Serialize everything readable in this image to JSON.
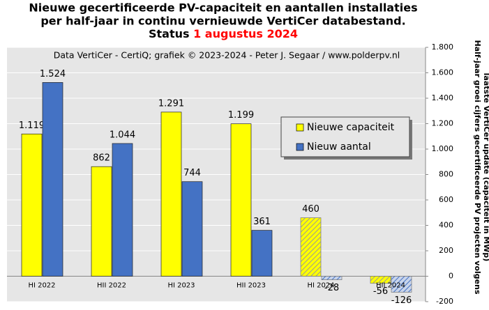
{
  "chart_data": {
    "type": "bar",
    "title": [
      "Nieuwe gecertificeerde PV-capaciteit  en aantallen installaties",
      "per half-jaar in continu vernieuwde VertiCer databestand."
    ],
    "status_label": "Status",
    "status_date": "1 augustus 2024",
    "annotation": "Data VertiCer - CertiQ; grafiek © 2023-2024 - Peter J. Segaar / www.polderpv.nl",
    "y_label": [
      "Half-jaar groei cijfers gecertificeerde PV projecten volgens",
      "laatste VertiCer update (capaciteit in MWp)"
    ],
    "categories": [
      "HI 2022",
      "HII 2022",
      "HI 2023",
      "HII 2023",
      "HI 2024",
      "HII 2024"
    ],
    "hatched": [
      false,
      false,
      false,
      false,
      true,
      true
    ],
    "series": [
      {
        "name": "Nieuwe capaciteit",
        "color": "#ffff00",
        "values": [
          1119,
          862,
          1291,
          1199,
          460,
          -56
        ],
        "value_labels": [
          "1.119",
          "862",
          "1.291",
          "1.199",
          "460",
          "-56"
        ]
      },
      {
        "name": "Nieuw aantal",
        "color": "#4472c4",
        "values": [
          1524,
          1044,
          744,
          361,
          -28,
          -126
        ],
        "value_labels": [
          "1.524",
          "1.044",
          "744",
          "361",
          "-28",
          "-126"
        ]
      }
    ],
    "ylim": [
      -200,
      1800
    ],
    "yticks": [
      {
        "value": -200,
        "label": "-200"
      },
      0,
      200,
      400,
      600,
      800,
      {
        "value": 1000,
        "label": "1.000"
      },
      {
        "value": 1200,
        "label": "1.200"
      },
      {
        "value": 1400,
        "label": "1.400"
      },
      {
        "value": 1600,
        "label": "1.600"
      },
      {
        "value": 1800,
        "label": "1.800"
      }
    ],
    "grid": true,
    "legend": "upper right"
  }
}
